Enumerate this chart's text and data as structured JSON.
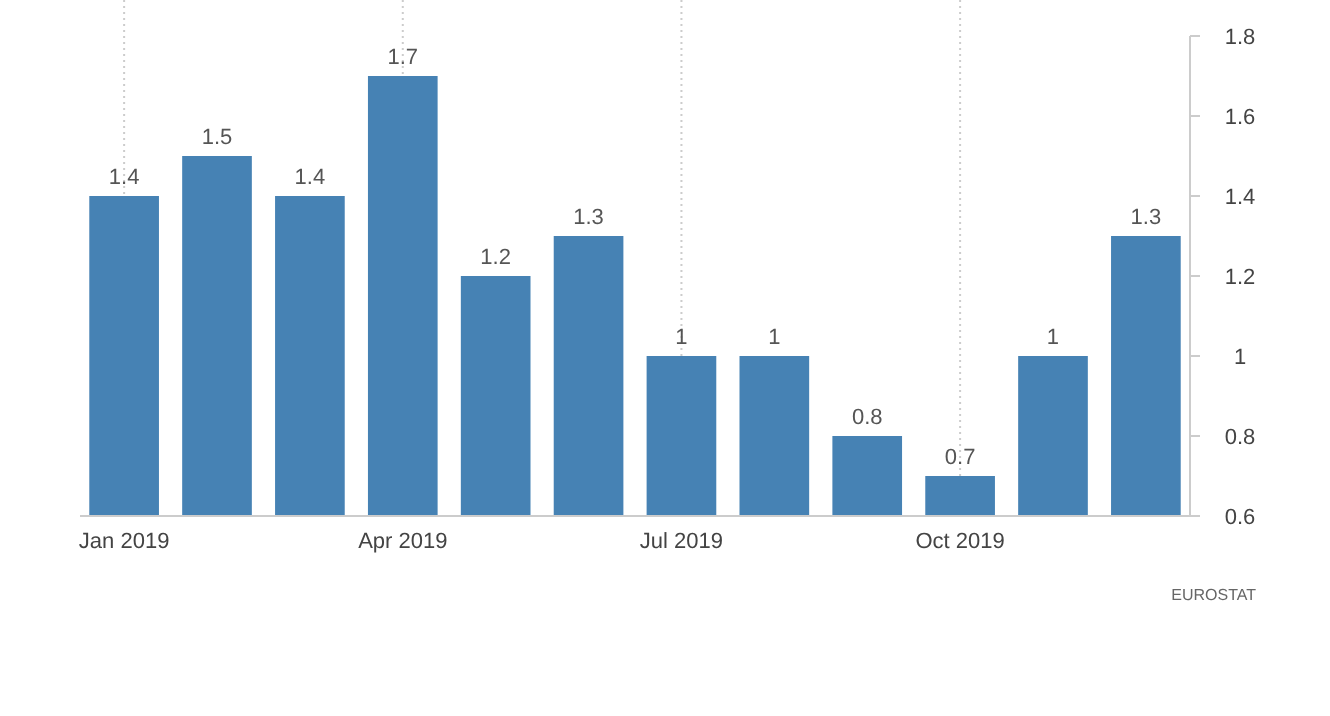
{
  "chart_data": {
    "type": "bar",
    "categories": [
      "Jan 2019",
      null,
      null,
      "Apr 2019",
      null,
      null,
      "Jul 2019",
      null,
      null,
      "Oct 2019",
      null,
      null
    ],
    "values": [
      1.4,
      1.5,
      1.4,
      1.7,
      1.2,
      1.3,
      1,
      1,
      0.8,
      0.7,
      1,
      1.3
    ],
    "color": "#4682b4",
    "ylim": [
      0.6,
      1.8
    ],
    "yticks": [
      0.6,
      0.8,
      1,
      1.2,
      1.4,
      1.6,
      1.8
    ],
    "grid": "x",
    "data_labels": true,
    "annotations": [
      "EUROSTAT"
    ]
  }
}
